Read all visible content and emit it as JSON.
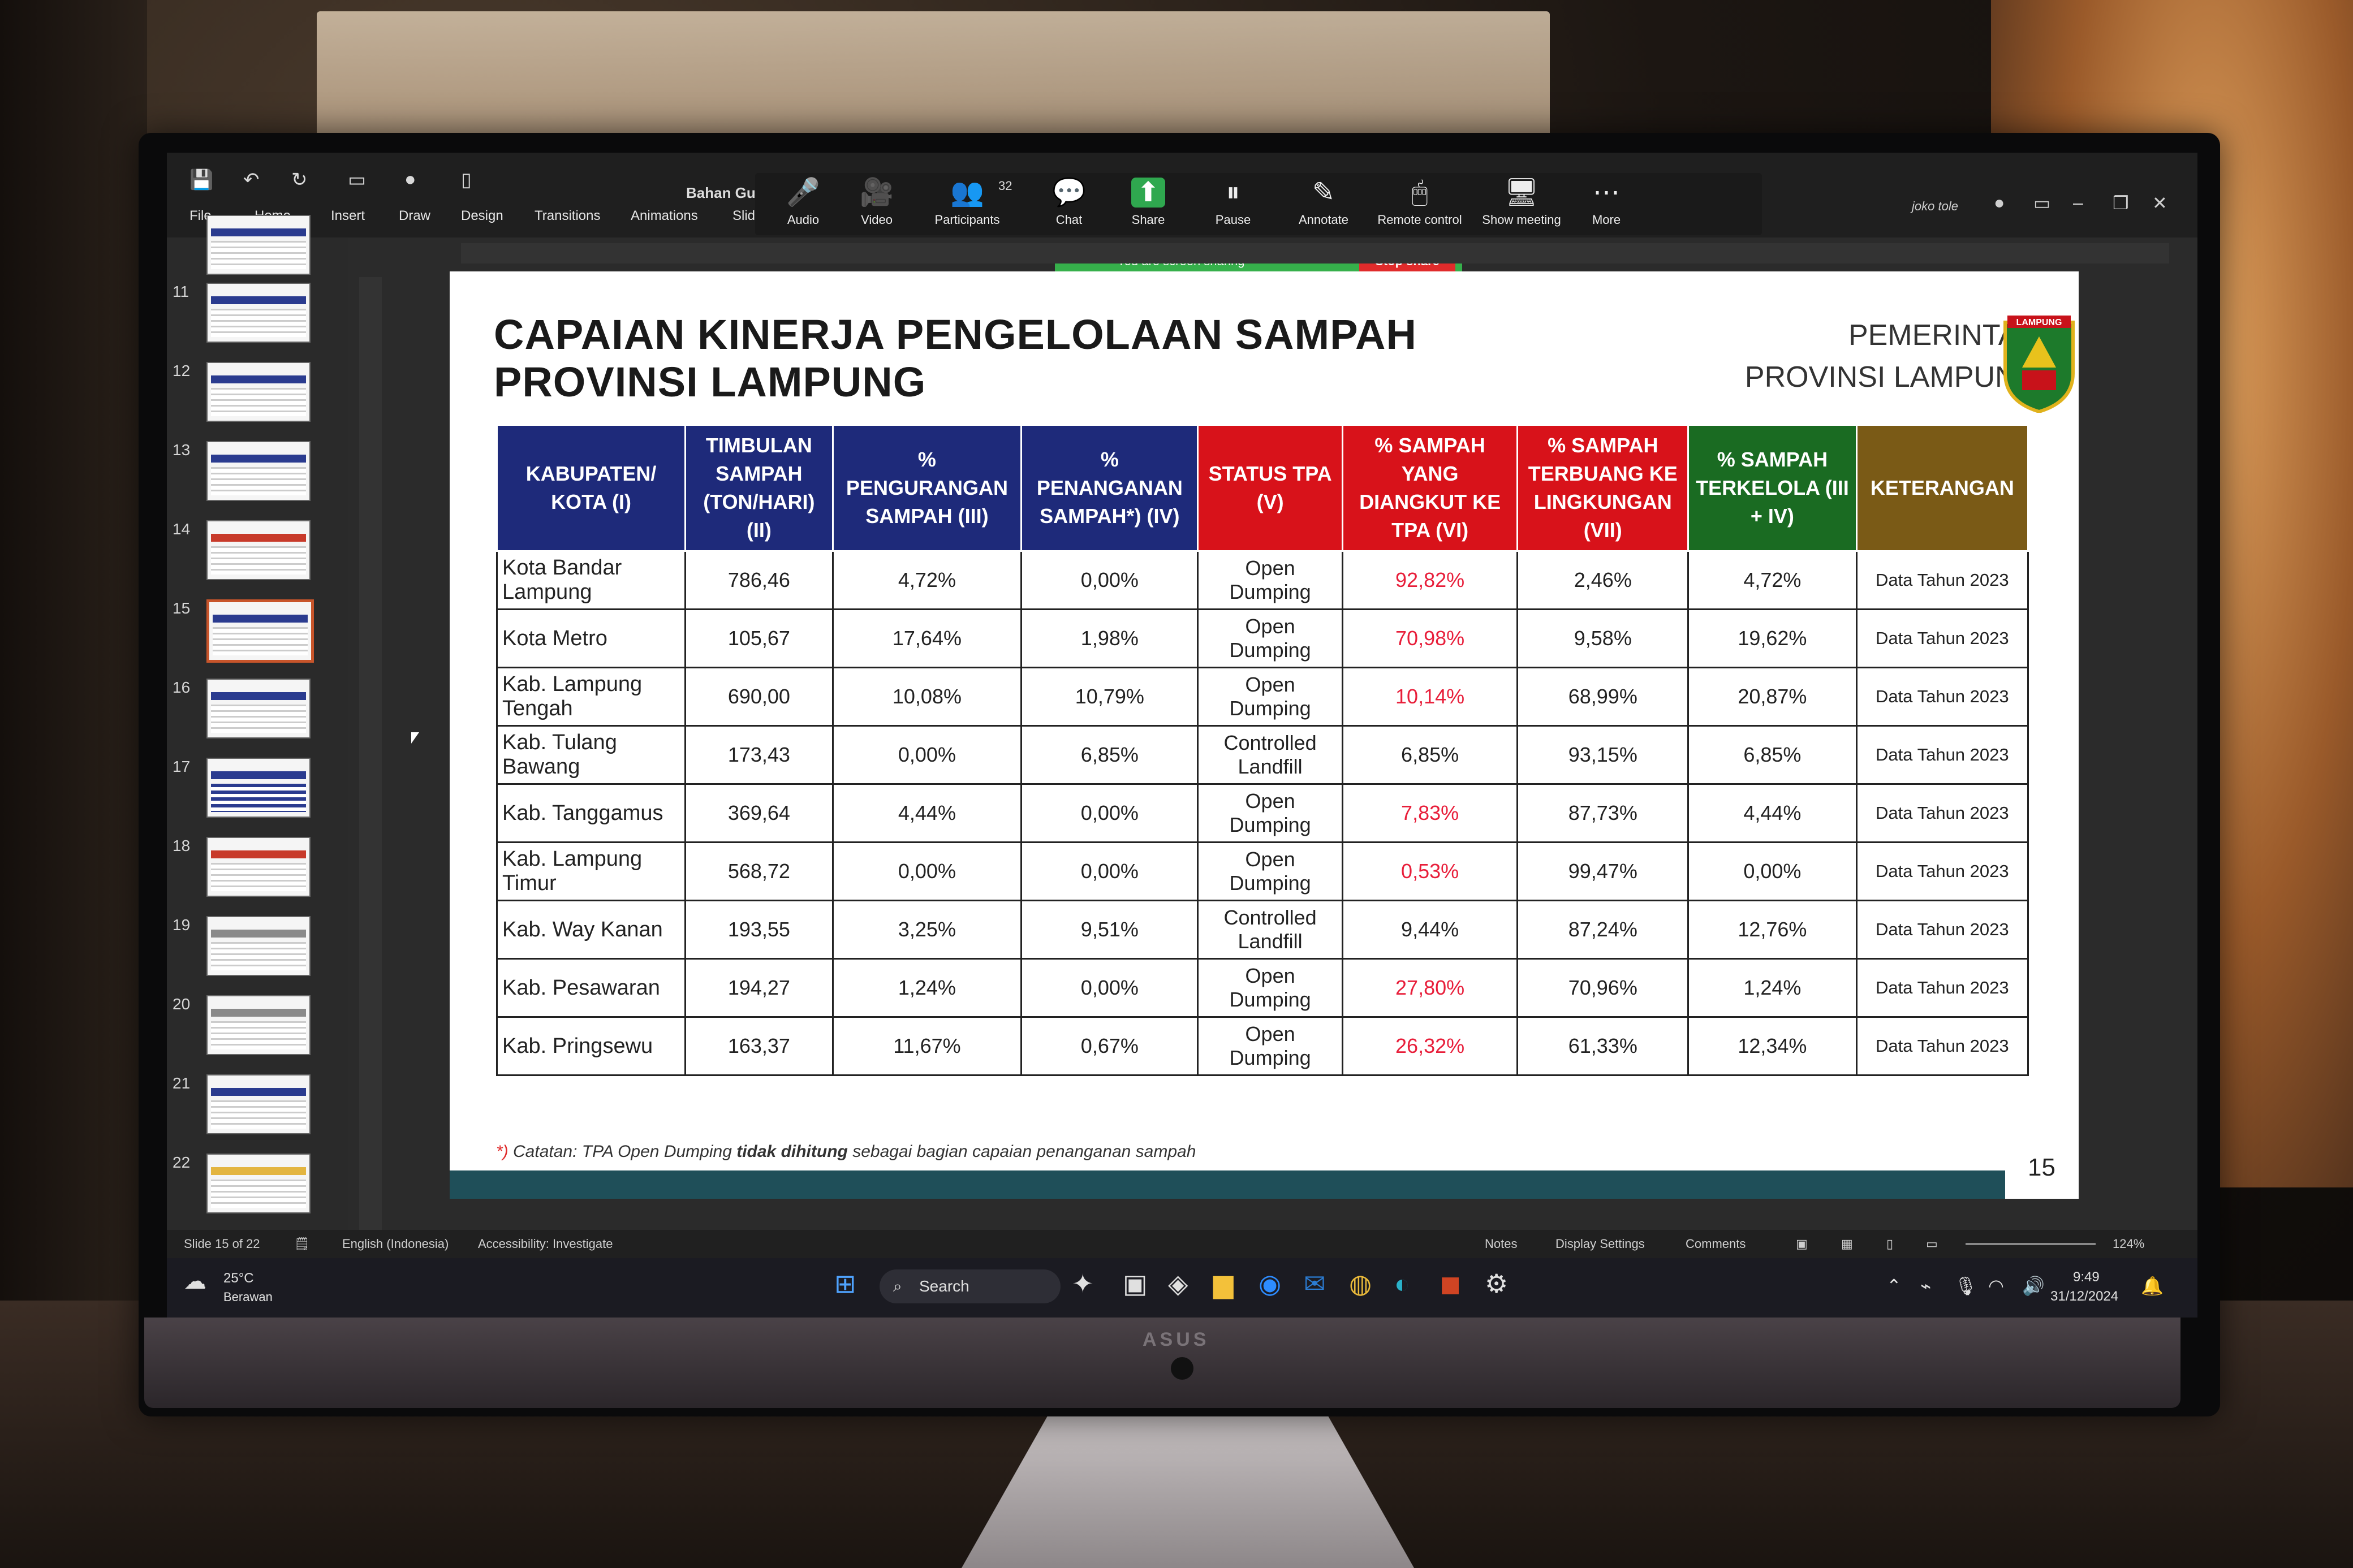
{
  "ribbon": {
    "tabs": [
      "File",
      "Home",
      "Insert",
      "Draw",
      "Design",
      "Transitions",
      "Animations",
      "Slide S"
    ],
    "doc_title": "Bahan Gubern",
    "user": "joko tole"
  },
  "zoom": {
    "items": [
      {
        "label": "Audio",
        "icon": "🎤"
      },
      {
        "label": "Video",
        "icon": "🎥"
      },
      {
        "label": "Participants",
        "icon": "👥",
        "badge": "32"
      },
      {
        "label": "Chat",
        "icon": "💬"
      },
      {
        "label": "Share",
        "icon": "⬆"
      },
      {
        "label": "Pause",
        "icon": "⏸"
      },
      {
        "label": "Annotate",
        "icon": "✎"
      },
      {
        "label": "Remote control",
        "icon": "🖱"
      },
      {
        "label": "Show meeting",
        "icon": "🖥"
      },
      {
        "label": "More",
        "icon": "⋯"
      }
    ],
    "sharing_banner": "You are screen sharing",
    "stop_share": "Stop share"
  },
  "thumbnails": [
    "11",
    "12",
    "13",
    "14",
    "15",
    "16",
    "17",
    "18",
    "19",
    "20",
    "21",
    "22"
  ],
  "slide": {
    "title_line1": "CAPAIAN KINERJA PENGELOLAAN SAMPAH",
    "title_line2": "PROVINSI LAMPUNG",
    "gov_line1": "PEMERINTAH",
    "gov_line2": "PROVINSI LAMPUNG",
    "logo_text": "LAMPUNG",
    "headers": [
      "KABUPATEN/ KOTA (I)",
      "TIMBULAN SAMPAH (TON/HARI) (II)",
      "% PENGURANGAN SAMPAH (III)",
      "% PENANGANAN SAMPAH*) (IV)",
      "STATUS TPA (V)",
      "% SAMPAH YANG DIANGKUT KE TPA (VI)",
      "% SAMPAH TERBUANG KE LINGKUNGAN (VII)",
      "% SAMPAH TERKELOLA (III + IV)",
      "KETERANGAN"
    ],
    "rows": [
      [
        "Kota Bandar Lampung",
        "786,46",
        "4,72%",
        "0,00%",
        "Open Dumping",
        "92,82%",
        "2,46%",
        "4,72%",
        "Data Tahun 2023"
      ],
      [
        "Kota Metro",
        "105,67",
        "17,64%",
        "1,98%",
        "Open Dumping",
        "70,98%",
        "9,58%",
        "19,62%",
        "Data Tahun 2023"
      ],
      [
        "Kab. Lampung Tengah",
        "690,00",
        "10,08%",
        "10,79%",
        "Open Dumping",
        "10,14%",
        "68,99%",
        "20,87%",
        "Data Tahun 2023"
      ],
      [
        "Kab. Tulang Bawang",
        "173,43",
        "0,00%",
        "6,85%",
        "Controlled Landfill",
        "6,85%",
        "93,15%",
        "6,85%",
        "Data Tahun 2023"
      ],
      [
        "Kab. Tanggamus",
        "369,64",
        "4,44%",
        "0,00%",
        "Open Dumping",
        "7,83%",
        "87,73%",
        "4,44%",
        "Data Tahun 2023"
      ],
      [
        "Kab. Lampung Timur",
        "568,72",
        "0,00%",
        "0,00%",
        "Open Dumping",
        "0,53%",
        "99,47%",
        "0,00%",
        "Data Tahun 2023"
      ],
      [
        "Kab. Way Kanan",
        "193,55",
        "3,25%",
        "9,51%",
        "Controlled Landfill",
        "9,44%",
        "87,24%",
        "12,76%",
        "Data Tahun 2023"
      ],
      [
        "Kab. Pesawaran",
        "194,27",
        "1,24%",
        "0,00%",
        "Open Dumping",
        "27,80%",
        "70,96%",
        "1,24%",
        "Data Tahun 2023"
      ],
      [
        "Kab. Pringsewu",
        "163,37",
        "11,67%",
        "0,67%",
        "Open Dumping",
        "26,32%",
        "61,33%",
        "12,34%",
        "Data Tahun 2023"
      ]
    ],
    "red_col6": [
      true,
      true,
      true,
      false,
      true,
      true,
      false,
      true,
      true
    ],
    "note_star": "*)",
    "note_pre": " Catatan: TPA Open Dumping ",
    "note_bold": "tidak dihitung",
    "note_post": " sebagai bagian capaian penanganan sampah",
    "page_number": "15"
  },
  "status": {
    "slide_of": "Slide 15 of 22",
    "language": "English (Indonesia)",
    "accessibility": "Accessibility: Investigate",
    "notes": "Notes",
    "display": "Display Settings",
    "comments": "Comments",
    "zoom": "124%"
  },
  "taskbar": {
    "temp": "25°C",
    "weather": "Berawan",
    "search": "Search",
    "time": "9:49",
    "date": "31/12/2024"
  }
}
